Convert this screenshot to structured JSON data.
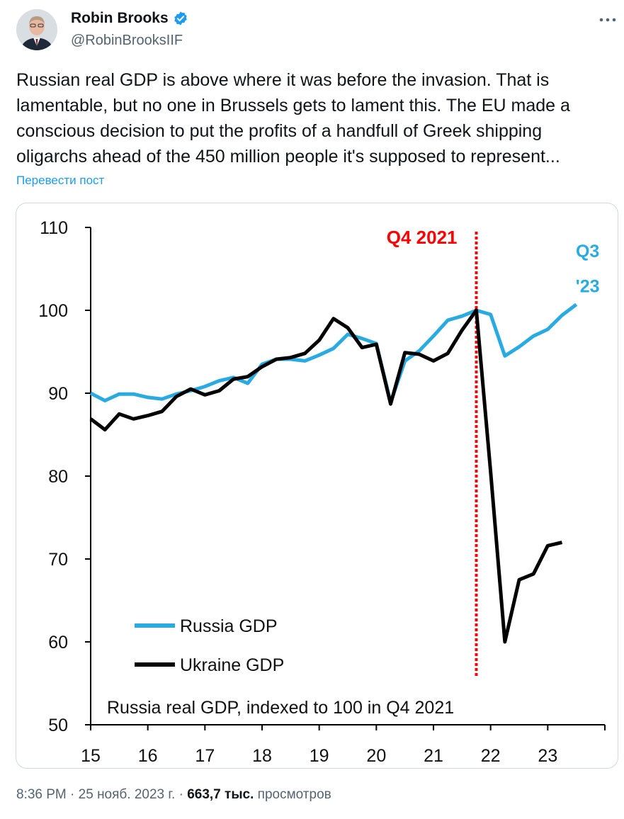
{
  "author": {
    "name": "Robin Brooks",
    "handle": "@RobinBrooksIIF",
    "verified_color": "#1d9bf0"
  },
  "tweet": {
    "text": "Russian real GDP is above where it was before the invasion. That is lamentable, but no one in Brussels gets to lament this. The EU made a conscious decision to put the profits of a handfull of Greek shipping oligarchs ahead of the 450 million people it's supposed to represent...",
    "translate_label": "Перевести пост"
  },
  "meta": {
    "time": "8:36 PM",
    "separator": "·",
    "date": "25 нояб. 2023 г.",
    "views_count": "663,7 тыс.",
    "views_label": "просмотров"
  },
  "icons": {
    "more": "more-dots-icon",
    "verified": "verified-badge-icon"
  },
  "chart_data": {
    "type": "line",
    "title": "Russia real GDP, indexed to 100 in Q4 2021",
    "xlabel": "",
    "ylabel": "",
    "ylim": [
      50,
      110
    ],
    "xlim": [
      15,
      24
    ],
    "yticks": [
      50,
      60,
      70,
      80,
      90,
      100,
      110
    ],
    "xtick_labels": [
      "15",
      "16",
      "17",
      "18",
      "19",
      "20",
      "21",
      "22",
      "23"
    ],
    "marker_label": "Q4 2021",
    "marker_x": 21.75,
    "marker_color": "#ff0000",
    "end_label": [
      "Q3",
      "'23"
    ],
    "series": [
      {
        "name": "Russia GDP",
        "color": "#29abe2",
        "x": [
          15,
          15.25,
          15.5,
          15.75,
          16,
          16.25,
          16.5,
          16.75,
          17,
          17.25,
          17.5,
          17.75,
          18,
          18.25,
          18.5,
          18.75,
          19,
          19.25,
          19.5,
          19.75,
          20,
          20.25,
          20.5,
          20.75,
          21,
          21.25,
          21.5,
          21.75,
          22,
          22.25,
          22.5,
          22.75,
          23,
          23.25,
          23.5
        ],
        "values": [
          90,
          89.1,
          89.9,
          89.9,
          89.5,
          89.3,
          89.9,
          90.3,
          90.8,
          91.5,
          91.9,
          91.2,
          93.5,
          94.1,
          94.1,
          93.9,
          94.6,
          95.4,
          97.1,
          96.6,
          96,
          88.9,
          93.9,
          95.1,
          96.9,
          98.8,
          99.3,
          100,
          99.5,
          94.5,
          95.6,
          96.9,
          97.7,
          99.4,
          100.7
        ]
      },
      {
        "name": "Ukraine GDP",
        "color": "#000000",
        "x": [
          15,
          15.25,
          15.5,
          15.75,
          16,
          16.25,
          16.5,
          16.75,
          17,
          17.25,
          17.5,
          17.75,
          18,
          18.25,
          18.5,
          18.75,
          19,
          19.25,
          19.5,
          19.75,
          20,
          20.25,
          20.5,
          20.75,
          21,
          21.25,
          21.5,
          21.75,
          22,
          22.25,
          22.5,
          22.75,
          23,
          23.25
        ],
        "values": [
          86.9,
          85.6,
          87.5,
          86.9,
          87.3,
          87.8,
          89.6,
          90.5,
          89.8,
          90.3,
          91.7,
          92,
          93.2,
          94.1,
          94.3,
          94.8,
          96.4,
          99,
          97.9,
          95.5,
          95.9,
          88.7,
          94.9,
          94.7,
          93.9,
          94.8,
          97.6,
          100,
          80.5,
          60,
          67.5,
          68.2,
          71.6,
          72
        ]
      }
    ]
  }
}
